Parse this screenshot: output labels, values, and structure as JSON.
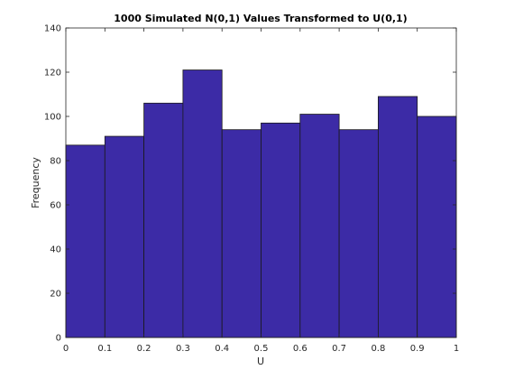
{
  "chart_data": {
    "type": "bar",
    "title": "1000 Simulated N(0,1) Values Transformed to U(0,1)",
    "xlabel": "U",
    "ylabel": "Frequency",
    "bin_edges": [
      0,
      0.1,
      0.2,
      0.3,
      0.4,
      0.5,
      0.6,
      0.7,
      0.8,
      0.9,
      1
    ],
    "values": [
      87,
      91,
      106,
      121,
      94,
      97,
      101,
      94,
      109,
      100
    ],
    "xlim": [
      0,
      1
    ],
    "ylim": [
      0,
      140
    ],
    "xticks": [
      "0",
      "0.1",
      "0.2",
      "0.3",
      "0.4",
      "0.5",
      "0.6",
      "0.7",
      "0.8",
      "0.9",
      "1"
    ],
    "yticks": [
      "0",
      "20",
      "40",
      "60",
      "80",
      "100",
      "120",
      "140"
    ],
    "grid": false,
    "bar_color": "#3c2ba6"
  }
}
